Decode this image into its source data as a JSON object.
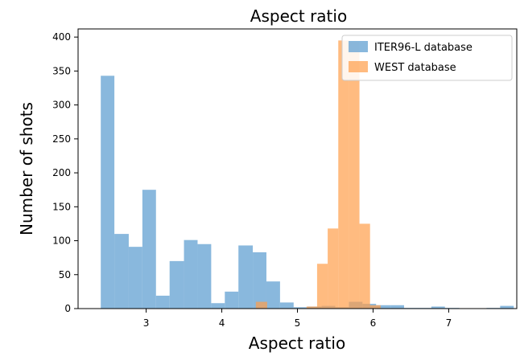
{
  "chart_data": {
    "type": "bar",
    "title": "Aspect ratio",
    "xlabel": "Aspect ratio",
    "ylabel": "Number of shots",
    "xlim": [
      2.1,
      7.9
    ],
    "ylim": [
      0,
      412
    ],
    "xticks": [
      3,
      4,
      5,
      6,
      7,
      8
    ],
    "yticks": [
      0,
      50,
      100,
      150,
      200,
      250,
      300,
      350,
      400
    ],
    "legend_position": "top-right",
    "grid": false,
    "series": [
      {
        "name": "ITER96-L database",
        "color": "#6fa8d6",
        "opacity": 0.82,
        "bins": [
          {
            "x0": 2.4,
            "x1": 2.58,
            "value": 343
          },
          {
            "x0": 2.58,
            "x1": 2.77,
            "value": 110
          },
          {
            "x0": 2.77,
            "x1": 2.95,
            "value": 91
          },
          {
            "x0": 2.95,
            "x1": 3.13,
            "value": 175
          },
          {
            "x0": 3.13,
            "x1": 3.31,
            "value": 19
          },
          {
            "x0": 3.31,
            "x1": 3.5,
            "value": 70
          },
          {
            "x0": 3.5,
            "x1": 3.68,
            "value": 101
          },
          {
            "x0": 3.68,
            "x1": 3.86,
            "value": 95
          },
          {
            "x0": 3.86,
            "x1": 4.04,
            "value": 8
          },
          {
            "x0": 4.04,
            "x1": 4.22,
            "value": 25
          },
          {
            "x0": 4.22,
            "x1": 4.41,
            "value": 93
          },
          {
            "x0": 4.41,
            "x1": 4.59,
            "value": 83
          },
          {
            "x0": 4.59,
            "x1": 4.77,
            "value": 40
          },
          {
            "x0": 4.77,
            "x1": 4.95,
            "value": 9
          },
          {
            "x0": 4.95,
            "x1": 5.13,
            "value": 2
          },
          {
            "x0": 5.13,
            "x1": 5.32,
            "value": 3
          },
          {
            "x0": 5.32,
            "x1": 5.5,
            "value": 4
          },
          {
            "x0": 5.5,
            "x1": 5.68,
            "value": 2
          },
          {
            "x0": 5.68,
            "x1": 5.86,
            "value": 10
          },
          {
            "x0": 5.86,
            "x1": 6.04,
            "value": 7
          },
          {
            "x0": 6.04,
            "x1": 6.23,
            "value": 5
          },
          {
            "x0": 6.23,
            "x1": 6.41,
            "value": 5
          },
          {
            "x0": 6.41,
            "x1": 6.59,
            "value": 1
          },
          {
            "x0": 6.59,
            "x1": 6.77,
            "value": 1
          },
          {
            "x0": 6.77,
            "x1": 6.95,
            "value": 3
          },
          {
            "x0": 6.95,
            "x1": 7.14,
            "value": 1
          },
          {
            "x0": 7.14,
            "x1": 7.32,
            "value": 0
          },
          {
            "x0": 7.32,
            "x1": 7.5,
            "value": 0
          },
          {
            "x0": 7.5,
            "x1": 7.68,
            "value": 1
          },
          {
            "x0": 7.68,
            "x1": 7.86,
            "value": 4
          }
        ]
      },
      {
        "name": "WEST database",
        "color": "#ff9e4a",
        "opacity": 0.7,
        "bins": [
          {
            "x0": 4.45,
            "x1": 4.6,
            "value": 10
          },
          {
            "x0": 4.6,
            "x1": 5.12,
            "value": 0
          },
          {
            "x0": 5.12,
            "x1": 5.26,
            "value": 3
          },
          {
            "x0": 5.26,
            "x1": 5.4,
            "value": 66
          },
          {
            "x0": 5.4,
            "x1": 5.54,
            "value": 118
          },
          {
            "x0": 5.54,
            "x1": 5.68,
            "value": 395
          },
          {
            "x0": 5.68,
            "x1": 5.82,
            "value": 393
          },
          {
            "x0": 5.82,
            "x1": 5.96,
            "value": 125
          },
          {
            "x0": 5.96,
            "x1": 6.1,
            "value": 5
          }
        ]
      }
    ]
  }
}
